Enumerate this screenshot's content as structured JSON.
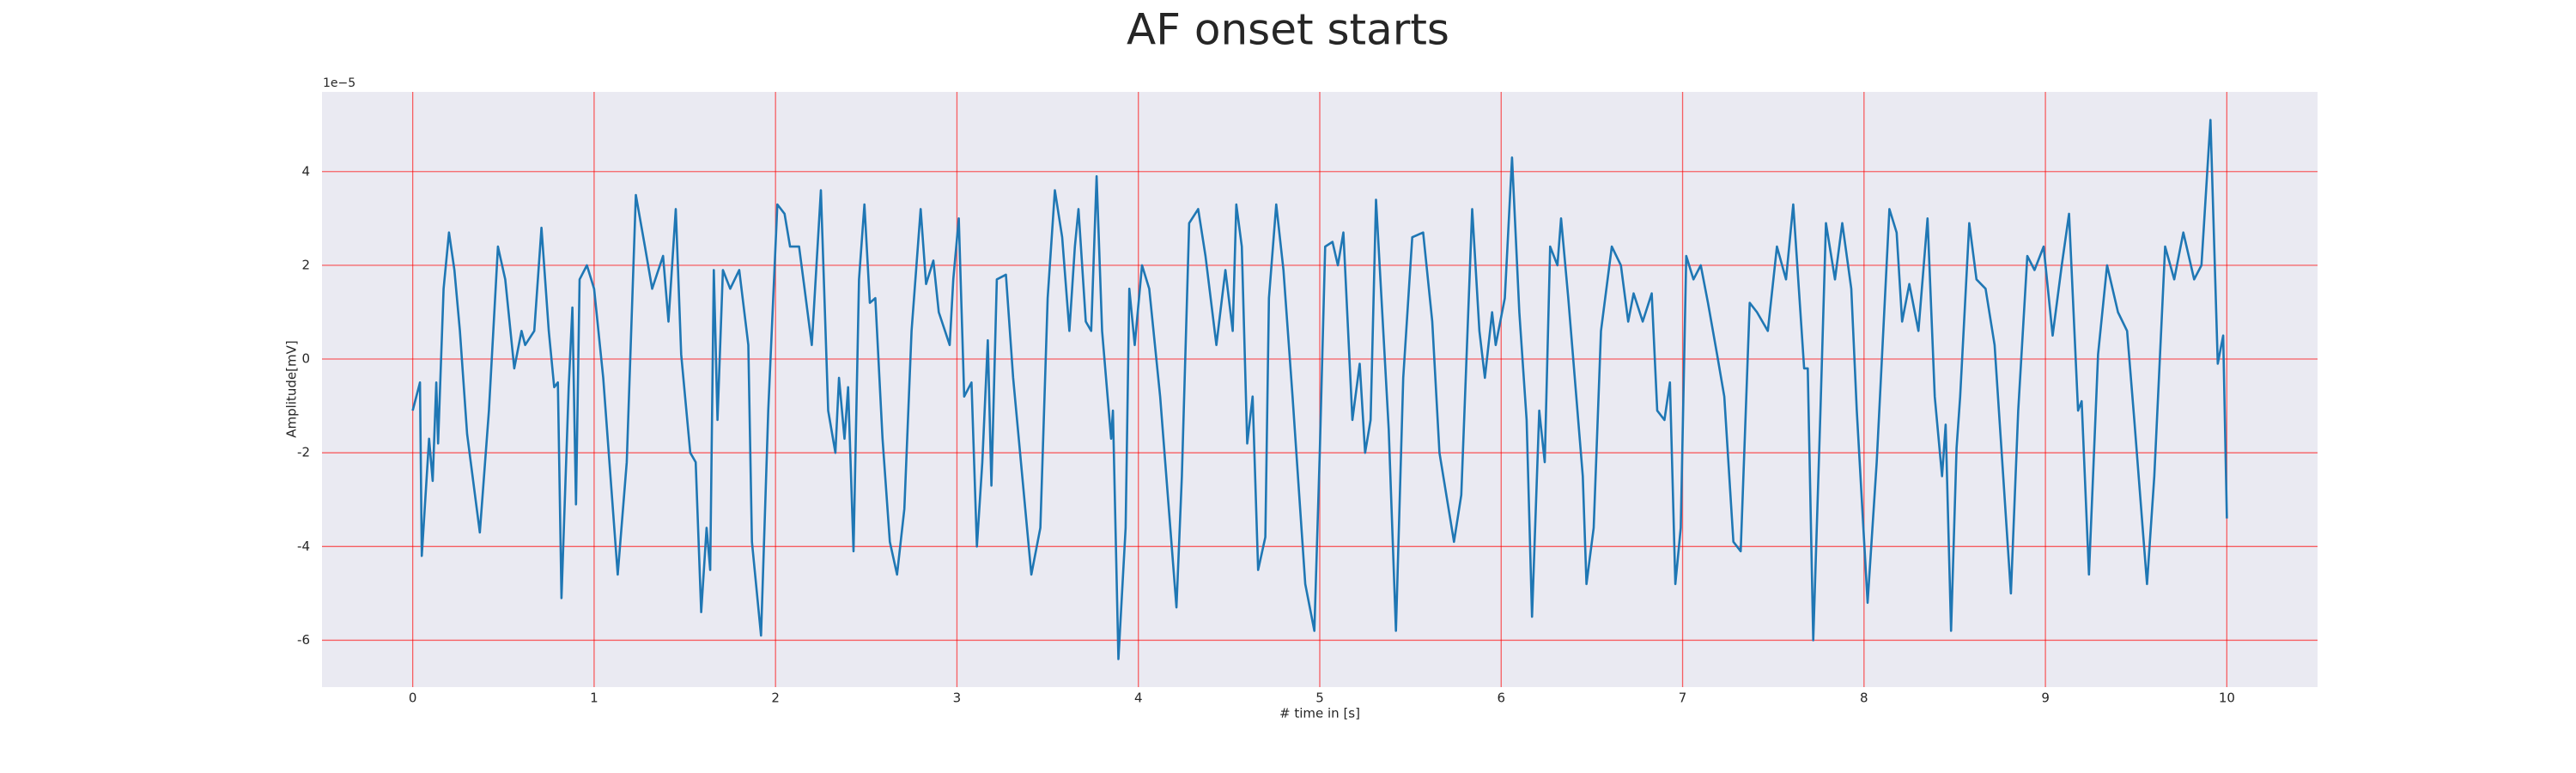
{
  "chart_data": {
    "type": "line",
    "title": "AF onset starts",
    "xlabel": "# time in [s]",
    "ylabel": "Amplitude[mV]",
    "y_offset_label": "1e−5",
    "color": "#1f77b4",
    "grid": true,
    "grid_color": "#ff0000",
    "background": "#eaeaf2",
    "xlim": [
      -0.5,
      10.5
    ],
    "xticks": [
      0,
      1,
      2,
      3,
      4,
      5,
      6,
      7,
      8,
      9,
      10
    ],
    "ylim": [
      -7.0,
      5.7
    ],
    "yticks": [
      -6,
      -4,
      -2,
      0,
      2,
      4
    ],
    "x": [
      0.0,
      0.04,
      0.05,
      0.09,
      0.11,
      0.13,
      0.14,
      0.17,
      0.2,
      0.23,
      0.26,
      0.3,
      0.37,
      0.42,
      0.47,
      0.51,
      0.56,
      0.6,
      0.62,
      0.67,
      0.71,
      0.75,
      0.78,
      0.8,
      0.82,
      0.86,
      0.88,
      0.9,
      0.92,
      0.96,
      1.0,
      1.05,
      1.13,
      1.18,
      1.23,
      1.28,
      1.32,
      1.38,
      1.41,
      1.45,
      1.48,
      1.53,
      1.56,
      1.59,
      1.62,
      1.64,
      1.66,
      1.68,
      1.71,
      1.75,
      1.8,
      1.85,
      1.87,
      1.92,
      1.96,
      2.01,
      2.05,
      2.08,
      2.13,
      2.16,
      2.2,
      2.25,
      2.29,
      2.33,
      2.35,
      2.38,
      2.4,
      2.43,
      2.46,
      2.49,
      2.52,
      2.55,
      2.59,
      2.63,
      2.67,
      2.71,
      2.75,
      2.8,
      2.83,
      2.87,
      2.9,
      2.96,
      2.98,
      3.01,
      3.04,
      3.08,
      3.11,
      3.14,
      3.17,
      3.19,
      3.22,
      3.27,
      3.31,
      3.41,
      3.46,
      3.5,
      3.54,
      3.58,
      3.62,
      3.65,
      3.67,
      3.71,
      3.74,
      3.77,
      3.8,
      3.85,
      3.86,
      3.89,
      3.93,
      3.95,
      3.98,
      4.02,
      4.06,
      4.12,
      4.21,
      4.24,
      4.28,
      4.33,
      4.37,
      4.43,
      4.48,
      4.52,
      4.54,
      4.57,
      4.6,
      4.63,
      4.66,
      4.7,
      4.72,
      4.76,
      4.8,
      4.85,
      4.92,
      4.97,
      5.0,
      5.03,
      5.07,
      5.1,
      5.13,
      5.18,
      5.22,
      5.25,
      5.28,
      5.31,
      5.38,
      5.42,
      5.46,
      5.51,
      5.57,
      5.62,
      5.66,
      5.74,
      5.78,
      5.84,
      5.88,
      5.91,
      5.95,
      5.97,
      6.02,
      6.06,
      6.1,
      6.14,
      6.17,
      6.21,
      6.24,
      6.27,
      6.31,
      6.33,
      6.37,
      6.45,
      6.47,
      6.51,
      6.55,
      6.61,
      6.66,
      6.7,
      6.73,
      6.78,
      6.83,
      6.86,
      6.9,
      6.93,
      6.96,
      6.99,
      7.02,
      7.06,
      7.1,
      7.14,
      7.19,
      7.23,
      7.28,
      7.32,
      7.37,
      7.41,
      7.47,
      7.52,
      7.57,
      7.61,
      7.67,
      7.69,
      7.72,
      7.76,
      7.79,
      7.84,
      7.88,
      7.93,
      7.96,
      8.02,
      8.07,
      8.14,
      8.18,
      8.21,
      8.25,
      8.3,
      8.35,
      8.39,
      8.43,
      8.45,
      8.48,
      8.51,
      8.53,
      8.58,
      8.62,
      8.67,
      8.72,
      8.81,
      8.85,
      8.9,
      8.94,
      8.99,
      9.04,
      9.09,
      9.13,
      9.18,
      9.2,
      9.24,
      9.29,
      9.34,
      9.4,
      9.45,
      9.49,
      9.56,
      9.6,
      9.66,
      9.71,
      9.76,
      9.82,
      9.86,
      9.91,
      9.95,
      9.98,
      10.0
    ],
    "values": [
      -1.1,
      -0.5,
      -4.2,
      -1.7,
      -2.6,
      -0.5,
      -1.8,
      1.5,
      2.7,
      1.9,
      0.6,
      -1.6,
      -3.7,
      -1.1,
      2.4,
      1.7,
      -0.2,
      0.6,
      0.3,
      0.6,
      2.8,
      0.6,
      -0.6,
      -0.5,
      -5.1,
      -0.6,
      1.1,
      -3.1,
      1.7,
      2.0,
      1.5,
      -0.4,
      -4.6,
      -2.2,
      3.5,
      2.4,
      1.5,
      2.2,
      0.8,
      3.2,
      0.1,
      -2.0,
      -2.2,
      -5.4,
      -3.6,
      -4.5,
      1.9,
      -1.3,
      1.9,
      1.5,
      1.9,
      0.3,
      -3.9,
      -5.9,
      -1.1,
      3.3,
      3.1,
      2.4,
      2.4,
      1.5,
      0.3,
      3.6,
      -1.1,
      -2.0,
      -0.4,
      -1.7,
      -0.6,
      -4.1,
      1.7,
      3.3,
      1.2,
      1.3,
      -1.7,
      -3.9,
      -4.6,
      -3.2,
      0.6,
      3.2,
      1.6,
      2.1,
      1.0,
      0.3,
      1.7,
      3.0,
      -0.8,
      -0.5,
      -4.0,
      -2.2,
      0.4,
      -2.7,
      1.7,
      1.8,
      -0.4,
      -4.6,
      -3.6,
      1.3,
      3.6,
      2.6,
      0.6,
      2.4,
      3.2,
      0.8,
      0.6,
      3.9,
      0.6,
      -1.7,
      -1.1,
      -6.4,
      -3.6,
      1.5,
      0.3,
      2.0,
      1.5,
      -0.8,
      -5.3,
      -2.5,
      2.9,
      3.2,
      2.2,
      0.3,
      1.9,
      0.6,
      3.3,
      2.4,
      -1.8,
      -0.8,
      -4.5,
      -3.8,
      1.3,
      3.3,
      1.9,
      -0.8,
      -4.8,
      -5.8,
      -2.0,
      2.4,
      2.5,
      2.0,
      2.7,
      -1.3,
      -0.1,
      -2.0,
      -1.3,
      3.4,
      -1.5,
      -5.8,
      -0.4,
      2.6,
      2.7,
      0.8,
      -2.0,
      -3.9,
      -2.9,
      3.2,
      0.6,
      -0.4,
      1.0,
      0.3,
      1.3,
      4.3,
      1.0,
      -1.3,
      -5.5,
      -1.1,
      -2.2,
      2.4,
      2.0,
      3.0,
      1.3,
      -2.5,
      -4.8,
      -3.6,
      0.6,
      2.4,
      2.0,
      0.8,
      1.4,
      0.8,
      1.4,
      -1.1,
      -1.3,
      -0.5,
      -4.8,
      -3.6,
      2.2,
      1.7,
      2.0,
      1.2,
      0.1,
      -0.8,
      -3.9,
      -4.1,
      1.2,
      1.0,
      0.6,
      2.4,
      1.7,
      3.3,
      -0.2,
      -0.2,
      -6.0,
      -1.1,
      2.9,
      1.7,
      2.9,
      1.5,
      -1.1,
      -5.2,
      -2.2,
      3.2,
      2.7,
      0.8,
      1.6,
      0.6,
      3.0,
      -0.8,
      -2.5,
      -1.4,
      -5.8,
      -1.9,
      -0.8,
      2.9,
      1.7,
      1.5,
      0.3,
      -5.0,
      -1.1,
      2.2,
      1.9,
      2.4,
      0.5,
      2.0,
      3.1,
      -1.1,
      -0.9,
      -4.6,
      0.1,
      2.0,
      1.0,
      0.6,
      -1.3,
      -4.8,
      -2.5,
      2.4,
      1.7,
      2.7,
      1.7,
      2.0,
      5.1,
      -0.1,
      0.5,
      -3.4
    ]
  }
}
